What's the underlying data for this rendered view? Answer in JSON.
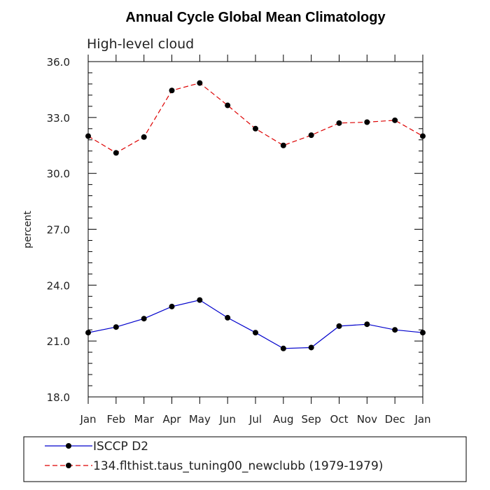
{
  "chart_data": {
    "type": "line",
    "title": "Annual Cycle Global Mean Climatology",
    "subtitle": "High-level cloud",
    "xlabel": "",
    "ylabel": "percent",
    "categories": [
      "Jan",
      "Feb",
      "Mar",
      "Apr",
      "May",
      "Jun",
      "Jul",
      "Aug",
      "Sep",
      "Oct",
      "Nov",
      "Dec",
      "Jan"
    ],
    "ylim": [
      18.0,
      36.0
    ],
    "yticks": [
      "18.0",
      "21.0",
      "24.0",
      "27.0",
      "30.0",
      "33.0",
      "36.0"
    ],
    "grid": false,
    "legend_position": "bottom",
    "series": [
      {
        "name": "ISCCP D2",
        "color": "#0000cc",
        "dash": "solid",
        "values": [
          21.45,
          21.75,
          22.2,
          22.85,
          23.2,
          22.25,
          21.45,
          20.6,
          20.65,
          21.8,
          21.9,
          21.6,
          21.45
        ]
      },
      {
        "name": "134.flthist.taus_tuning00_newclubb (1979-1979)",
        "color": "#dd0000",
        "dash": "dashed",
        "values": [
          32.0,
          31.1,
          31.95,
          34.45,
          34.85,
          33.65,
          32.4,
          31.5,
          32.05,
          32.7,
          32.75,
          32.85,
          32.0
        ]
      }
    ]
  }
}
